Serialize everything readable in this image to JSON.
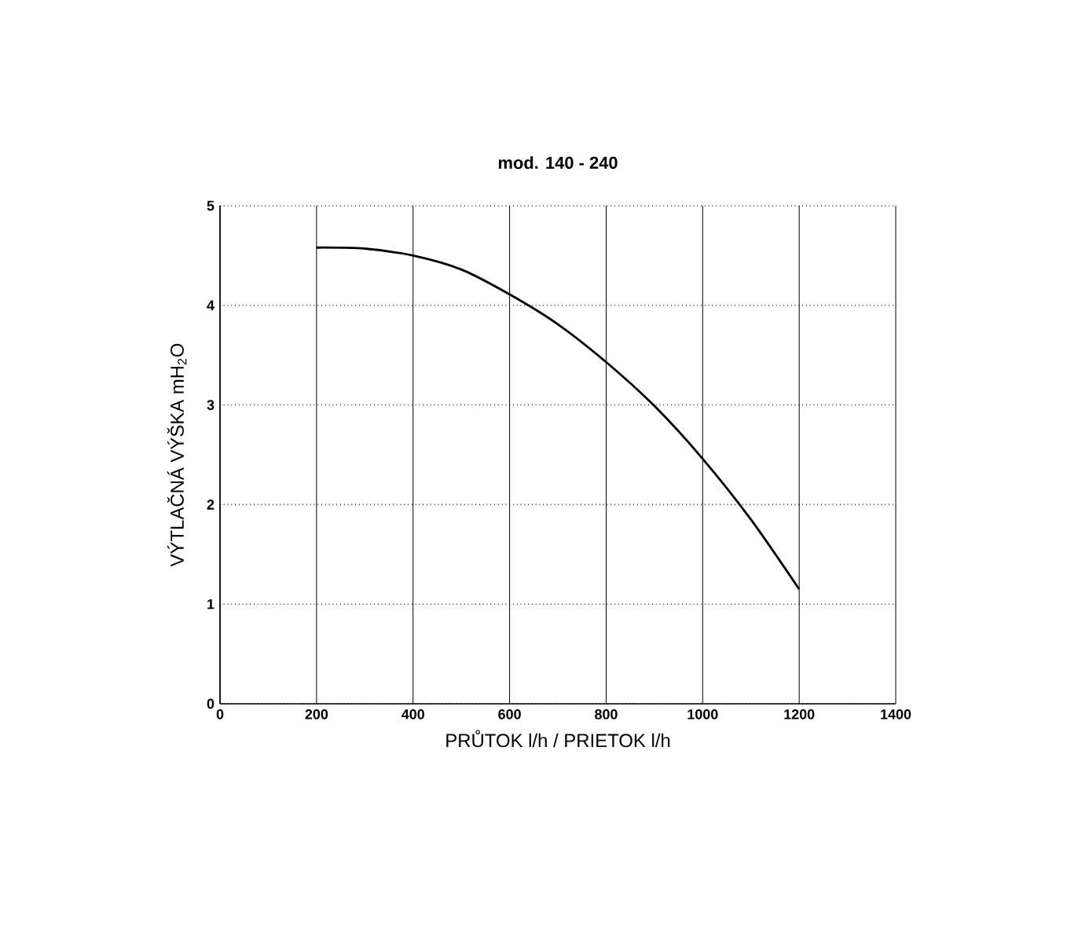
{
  "chart_data": {
    "type": "line",
    "title": "mod. 140 - 240",
    "xlabel": "PRŮTOK l/h / PRIETOK l/h",
    "ylabel": "VÝTLAČNÁ VÝŠKA mH$_{2}$O",
    "x": [
      200,
      300,
      400,
      500,
      600,
      700,
      800,
      900,
      1000,
      1100,
      1200
    ],
    "series": [
      {
        "color": "#000000",
        "values": [
          4.58,
          4.57,
          4.5,
          4.36,
          4.11,
          3.81,
          3.43,
          2.99,
          2.46,
          1.85,
          1.15
        ]
      }
    ],
    "xlim": [
      0,
      1400
    ],
    "ylim": [
      0,
      5
    ],
    "xticks": [
      0,
      200,
      400,
      600,
      800,
      1000,
      1200,
      1400
    ],
    "yticks": [
      0,
      1,
      2,
      3,
      4,
      5
    ],
    "grid": true,
    "marker": "none",
    "line_style": "solid"
  }
}
